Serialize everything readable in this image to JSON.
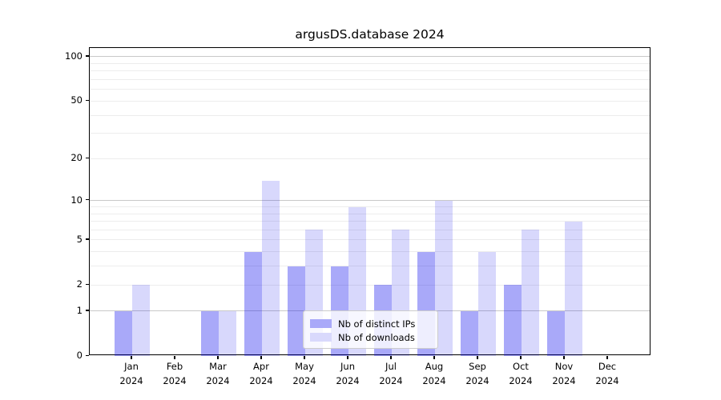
{
  "title": "argusDS.database 2024",
  "legend": {
    "items": [
      {
        "label": "Nb of distinct IPs",
        "swatch_color": "#a9a9f9"
      },
      {
        "label": "Nb of downloads",
        "swatch_color": "#d9d9fc"
      }
    ]
  },
  "colors": {
    "bar_distinct_ips": "rgba(8,8,239,0.35)",
    "bar_downloads": "rgba(8,8,239,0.155)",
    "grid_major": "#c9c9c9",
    "grid_minor": "#ececec",
    "axis": "#000000"
  },
  "y_axis": {
    "tick_values": [
      0,
      1,
      2,
      5,
      10,
      20,
      50,
      100
    ],
    "tick_labels": [
      "0",
      "1",
      "2",
      "5",
      "10",
      "20",
      "50",
      "100"
    ]
  },
  "x_axis": {
    "months": [
      {
        "month": "Jan",
        "year": "2024"
      },
      {
        "month": "Feb",
        "year": "2024"
      },
      {
        "month": "Mar",
        "year": "2024"
      },
      {
        "month": "Apr",
        "year": "2024"
      },
      {
        "month": "May",
        "year": "2024"
      },
      {
        "month": "Jun",
        "year": "2024"
      },
      {
        "month": "Jul",
        "year": "2024"
      },
      {
        "month": "Aug",
        "year": "2024"
      },
      {
        "month": "Sep",
        "year": "2024"
      },
      {
        "month": "Oct",
        "year": "2024"
      },
      {
        "month": "Nov",
        "year": "2024"
      },
      {
        "month": "Dec",
        "year": "2024"
      }
    ]
  },
  "chart_data": {
    "type": "bar",
    "title": "argusDS.database 2024",
    "categories": [
      "Jan 2024",
      "Feb 2024",
      "Mar 2024",
      "Apr 2024",
      "May 2024",
      "Jun 2024",
      "Jul 2024",
      "Aug 2024",
      "Sep 2024",
      "Oct 2024",
      "Nov 2024",
      "Dec 2024"
    ],
    "series": [
      {
        "name": "Nb of distinct IPs",
        "values": [
          1,
          0,
          1,
          4,
          3,
          3,
          2,
          4,
          1,
          2,
          1,
          0
        ]
      },
      {
        "name": "Nb of downloads",
        "values": [
          2,
          0,
          1,
          14,
          6,
          9,
          6,
          10,
          4,
          6,
          7,
          0
        ]
      }
    ],
    "xlabel": "",
    "ylabel": "",
    "yscale": "log10(value+1)",
    "ylim": [
      0,
      118
    ],
    "yticks": [
      0,
      1,
      2,
      5,
      10,
      20,
      50,
      100
    ],
    "major_gridlines": [
      1,
      10,
      100
    ],
    "minor_gridlines": [
      2,
      3,
      4,
      5,
      6,
      7,
      8,
      9,
      20,
      30,
      40,
      50,
      60,
      70,
      80,
      90
    ],
    "grid": true,
    "legend_position": "lower center"
  }
}
